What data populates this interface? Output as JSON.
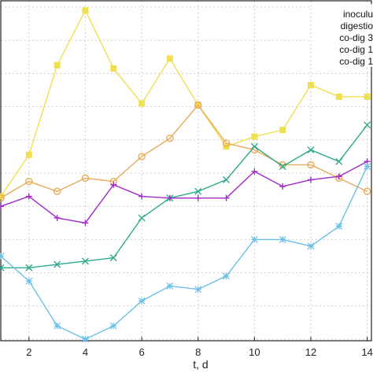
{
  "chart_data": {
    "type": "line",
    "title": "",
    "xlabel": "t, d",
    "ylabel": "",
    "x": [
      1,
      2,
      3,
      4,
      5,
      6,
      7,
      8,
      9,
      10,
      11,
      12,
      13,
      14
    ],
    "x_ticks": [
      "2",
      "4",
      "6",
      "8",
      "10",
      "12",
      "14"
    ],
    "xlim": [
      1,
      14.15
    ],
    "ylim": [
      0,
      100
    ],
    "grid": true,
    "legend_position": "top-right",
    "series": [
      {
        "name": "inoculu",
        "color": "#f0e050",
        "marker": "square",
        "values": [
          43,
          55.5,
          82.5,
          99,
          81.5,
          71,
          84.5,
          70.5,
          58,
          61,
          63,
          76.5,
          73,
          73
        ]
      },
      {
        "name": "digestio",
        "color": "#eaaa5a",
        "marker": "circle",
        "values": [
          42.5,
          47.5,
          44.5,
          48.5,
          47.5,
          55,
          60.5,
          70.5,
          59,
          57,
          52.5,
          52.5,
          48.5,
          44.5
        ]
      },
      {
        "name": "co-dig 3",
        "color": "#2eaa8e",
        "marker": "x",
        "values": [
          21.5,
          21.5,
          22.5,
          23.5,
          24.5,
          36.5,
          42.5,
          44.5,
          48,
          58,
          52,
          57,
          53.5,
          64.5
        ]
      },
      {
        "name": "co-dig 1",
        "color": "#a02cc8",
        "marker": "plus",
        "values": [
          40,
          43,
          36.5,
          35,
          46.5,
          43,
          42.5,
          42.5,
          42.5,
          50.5,
          46,
          48,
          49,
          53.5
        ]
      },
      {
        "name": "co-dig 1",
        "color": "#6cc0e6",
        "marker": "star",
        "values": [
          25,
          17.5,
          4,
          0,
          4,
          11.5,
          16,
          15,
          19,
          30,
          30,
          28,
          34,
          52
        ]
      }
    ]
  }
}
